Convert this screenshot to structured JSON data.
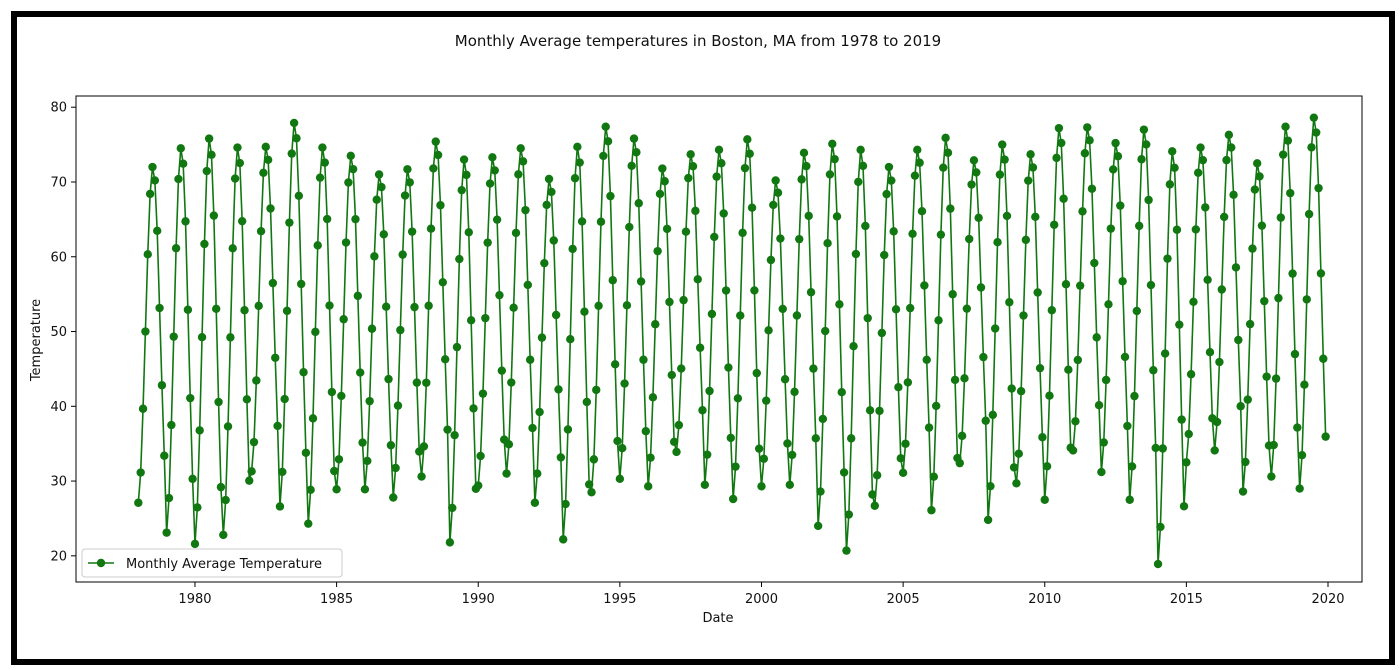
{
  "chart_data": {
    "type": "line",
    "title": "Monthly Average temperatures in Boston, MA from 1978 to 2019",
    "xlabel": "Date",
    "ylabel": "Temperature",
    "xlim": [
      1975.8,
      2021.2
    ],
    "ylim": [
      16.5,
      81.5
    ],
    "xticks": [
      1980,
      1985,
      1990,
      1995,
      2000,
      2005,
      2010,
      2015,
      2020
    ],
    "yticks": [
      20,
      30,
      40,
      50,
      60,
      70,
      80
    ],
    "grid": false,
    "legend_position": "lower-left",
    "color": "#117711",
    "marker": "circle",
    "series": [
      {
        "name": "Monthly Average Temperature",
        "start_year": 1978,
        "start_month": 1,
        "annual_maxima": [
          72,
          74.5,
          75.8,
          74.6,
          74.7,
          77.9,
          74.6,
          73.5,
          71,
          71.7,
          75.4,
          73,
          73.3,
          74.5,
          70.4,
          74.7,
          77.4,
          75.8,
          71.8,
          73.7,
          74.3,
          75.7,
          70.2,
          73.9,
          75.1,
          74.3,
          72,
          74.3,
          75.9,
          72.9,
          75,
          73.7,
          77.2,
          77.3,
          75.2,
          77,
          74.1,
          74.6,
          76.3,
          72.5,
          77.4,
          78.6
        ],
        "annual_minima": [
          27.1,
          23.1,
          21.6,
          22.8,
          31.3,
          26.6,
          24.3,
          28.9,
          28.9,
          27.8,
          30.6,
          21.8,
          29.4,
          31,
          27.1,
          22.2,
          28.5,
          30.3,
          29.3,
          33.9,
          29.5,
          27.6,
          29.3,
          29.5,
          24,
          20.7,
          26.7,
          31.1,
          26.1,
          32.4,
          24.8,
          29.7,
          27.5,
          34.1,
          31.2,
          27.5,
          18.9,
          32.5,
          34.1,
          28.6,
          30.6,
          29
        ]
      }
    ]
  }
}
